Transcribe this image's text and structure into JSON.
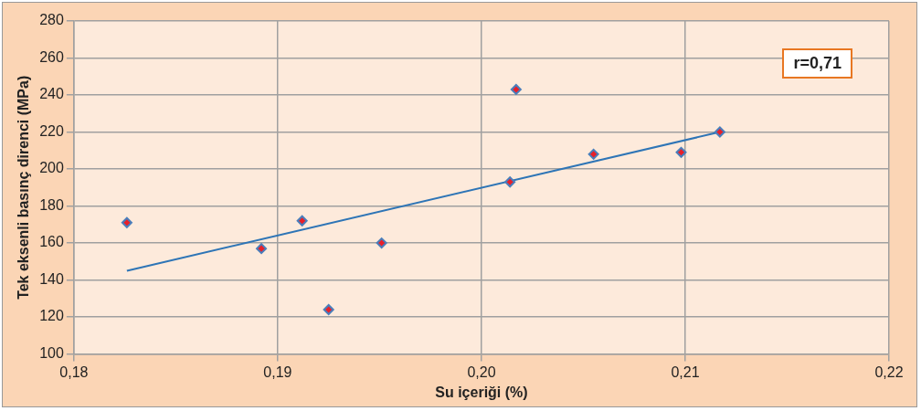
{
  "chart_data": {
    "type": "scatter",
    "xlabel": "Su içeriği (%)",
    "ylabel": "Tek eksenli basınç direnci (MPa)",
    "series": [
      {
        "type": "scatter",
        "marker": "diamond",
        "color": "#e8202a",
        "x": [
          0.1826,
          0.1892,
          0.1912,
          0.1925,
          0.1951,
          0.2014,
          0.2017,
          0.2055,
          0.2098,
          0.2117
        ],
        "values": [
          171,
          157,
          172,
          124,
          160,
          193,
          243,
          208,
          209,
          220
        ]
      },
      {
        "type": "line",
        "color": "#2e75b6",
        "x": [
          0.1826,
          0.2117
        ],
        "values": [
          145,
          220
        ]
      }
    ],
    "xlim": [
      0.18,
      0.22
    ],
    "xticks": [
      {
        "value": 0.18,
        "label": "0,18"
      },
      {
        "value": 0.19,
        "label": "0,19"
      },
      {
        "value": 0.2,
        "label": "0,20"
      },
      {
        "value": 0.21,
        "label": "0,21"
      },
      {
        "value": 0.22,
        "label": "0,22"
      }
    ],
    "ylim": [
      100,
      280
    ],
    "yticks": [
      100,
      120,
      140,
      160,
      180,
      200,
      220,
      240,
      260,
      280
    ],
    "grid": true,
    "legend": false,
    "annotations": [
      "r=0,71"
    ]
  }
}
